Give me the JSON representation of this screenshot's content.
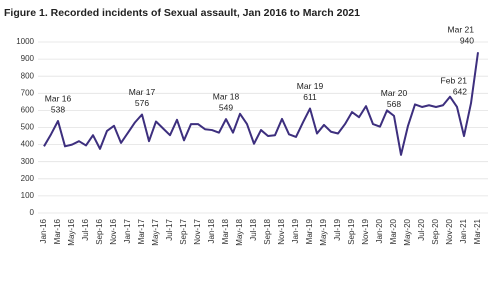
{
  "chart_data": {
    "type": "line",
    "title": "Figure 1. Recorded incidents of Sexual assault, Jan 2016 to March 2021",
    "categories": [
      "Jan-16",
      null,
      "Mar-16",
      null,
      "May-16",
      null,
      "Jul-16",
      null,
      "Sep-16",
      null,
      "Nov-16",
      null,
      "Jan-17",
      null,
      "Mar-17",
      null,
      "May-17",
      null,
      "Jul-17",
      null,
      "Sep-17",
      null,
      "Nov-17",
      null,
      "Jan-18",
      null,
      "Mar-18",
      null,
      "May-18",
      null,
      "Jul-18",
      null,
      "Sep-18",
      null,
      "Nov-18",
      null,
      "Jan-19",
      null,
      "Mar-19",
      null,
      "May-19",
      null,
      "Jul-19",
      null,
      "Sep-19",
      null,
      "Nov-19",
      null,
      "Jan-20",
      null,
      "Mar-20",
      null,
      "May-20",
      null,
      "Jul-20",
      null,
      "Sep-20",
      null,
      "Nov-20",
      null,
      "Jan-21",
      null,
      "Mar-21"
    ],
    "series": [
      {
        "color": "#3d2f7e",
        "values": [
          390,
          460,
          538,
          390,
          400,
          420,
          395,
          455,
          375,
          480,
          510,
          410,
          470,
          530,
          576,
          420,
          535,
          495,
          455,
          545,
          425,
          520,
          520,
          490,
          485,
          470,
          549,
          470,
          580,
          520,
          405,
          485,
          450,
          455,
          550,
          460,
          445,
          530,
          611,
          465,
          515,
          475,
          465,
          520,
          590,
          560,
          625,
          520,
          505,
          600,
          568,
          340,
          510,
          635,
          620,
          630,
          620,
          630,
          680,
          620,
          450,
          642,
          940
        ]
      }
    ],
    "annotations": [
      {
        "label": "Mar 16",
        "value": 538
      },
      {
        "label": "Mar 17",
        "value": 576
      },
      {
        "label": "Mar 18",
        "value": 549
      },
      {
        "label": "Mar 19",
        "value": 611
      },
      {
        "label": "Mar 20",
        "value": 568
      },
      {
        "label": "Feb 21",
        "value": 642
      },
      {
        "label": "Mar 21",
        "value": 940
      }
    ],
    "ylim": [
      0,
      1000
    ],
    "yticks": [
      0,
      100,
      200,
      300,
      400,
      500,
      600,
      700,
      800,
      900,
      1000
    ],
    "grid": true
  }
}
